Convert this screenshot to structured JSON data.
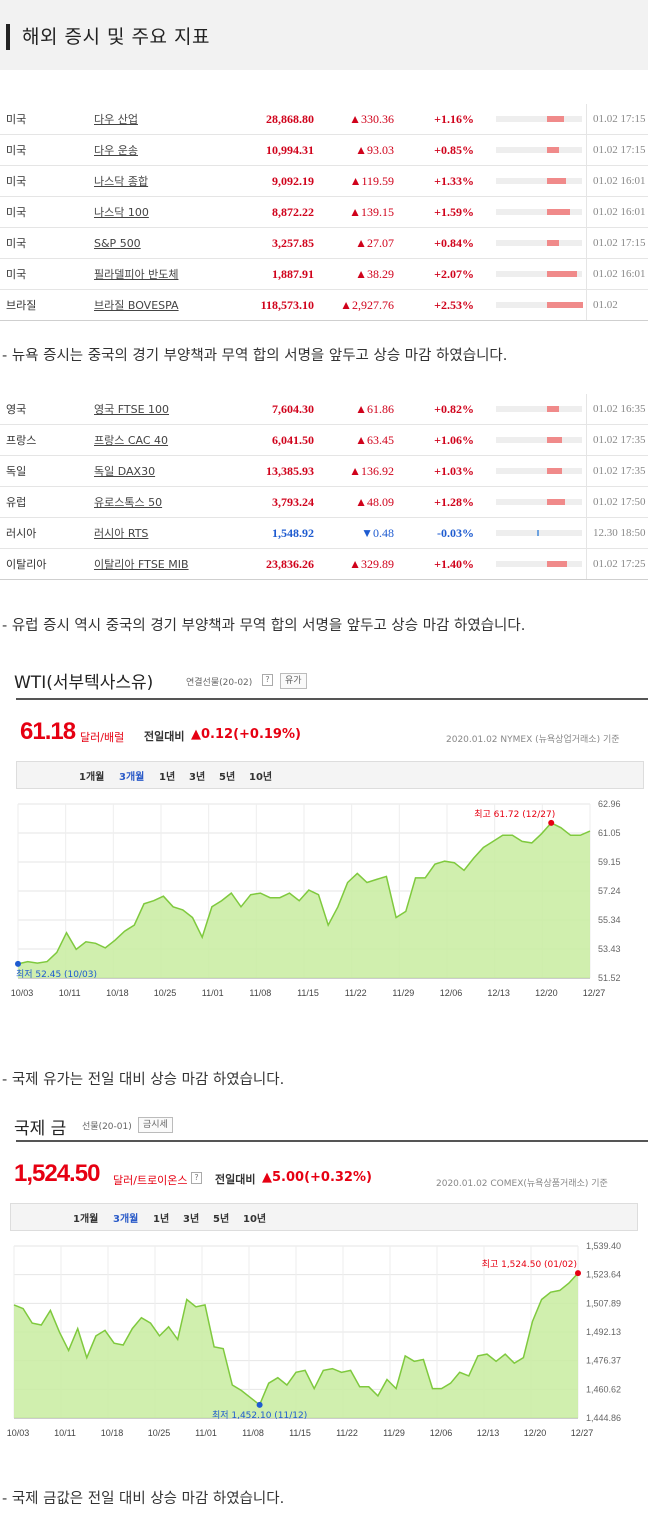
{
  "header": {
    "title": "해외 증시 및 주요 지표"
  },
  "us_table": [
    {
      "country": "미국",
      "name": "다우 산업",
      "price": "28,868.80",
      "change": "▲330.36",
      "pct": "+1.16%",
      "bar": 0.39,
      "dir": "up",
      "time": "01.02 17:15"
    },
    {
      "country": "미국",
      "name": "다우 운송",
      "price": "10,994.31",
      "change": "▲93.03",
      "pct": "+0.85%",
      "bar": 0.28,
      "dir": "up",
      "time": "01.02 17:15"
    },
    {
      "country": "미국",
      "name": "나스닥 종합",
      "price": "9,092.19",
      "change": "▲119.59",
      "pct": "+1.33%",
      "bar": 0.44,
      "dir": "up",
      "time": "01.02 16:01"
    },
    {
      "country": "미국",
      "name": "나스닥 100",
      "price": "8,872.22",
      "change": "▲139.15",
      "pct": "+1.59%",
      "bar": 0.53,
      "dir": "up",
      "time": "01.02 16:01"
    },
    {
      "country": "미국",
      "name": "S&P 500",
      "price": "3,257.85",
      "change": "▲27.07",
      "pct": "+0.84%",
      "bar": 0.28,
      "dir": "up",
      "time": "01.02 17:15"
    },
    {
      "country": "미국",
      "name": "필라델피아 반도체",
      "price": "1,887.91",
      "change": "▲38.29",
      "pct": "+2.07%",
      "bar": 0.69,
      "dir": "up",
      "time": "01.02 16:01"
    },
    {
      "country": "브라질",
      "name": "브라질 BOVESPA",
      "price": "118,573.10",
      "change": "▲2,927.76",
      "pct": "+2.53%",
      "bar": 0.84,
      "dir": "up",
      "time": "01.02"
    }
  ],
  "note_us": "- 뉴욕 증시는 중국의 경기 부양책과 무역 합의 서명을 앞두고 상승 마감 하였습니다.",
  "eu_table": [
    {
      "country": "영국",
      "name": "영국 FTSE 100",
      "price": "7,604.30",
      "change": "▲61.86",
      "pct": "+0.82%",
      "bar": 0.27,
      "dir": "up",
      "time": "01.02 16:35"
    },
    {
      "country": "프랑스",
      "name": "프랑스 CAC 40",
      "price": "6,041.50",
      "change": "▲63.45",
      "pct": "+1.06%",
      "bar": 0.35,
      "dir": "up",
      "time": "01.02 17:35"
    },
    {
      "country": "독일",
      "name": "독일 DAX30",
      "price": "13,385.93",
      "change": "▲136.92",
      "pct": "+1.03%",
      "bar": 0.34,
      "dir": "up",
      "time": "01.02 17:35"
    },
    {
      "country": "유럽",
      "name": "유로스톡스 50",
      "price": "3,793.24",
      "change": "▲48.09",
      "pct": "+1.28%",
      "bar": 0.43,
      "dir": "up",
      "time": "01.02 17:50"
    },
    {
      "country": "러시아",
      "name": "러시아 RTS",
      "price": "1,548.92",
      "change": "▼0.48",
      "pct": "-0.03%",
      "bar": 0.01,
      "dir": "down",
      "time": "12.30 18:50"
    },
    {
      "country": "이탈리아",
      "name": "이탈리아 FTSE MIB",
      "price": "23,836.26",
      "change": "▲329.89",
      "pct": "+1.40%",
      "bar": 0.47,
      "dir": "up",
      "time": "01.02 17:25"
    }
  ],
  "note_eu": "- 유럽 증시 역시 중국의 경기 부양책과 무역 합의 서명을 앞두고 상승 마감 하였습니다.",
  "wti": {
    "title": "WTI(서부텍사스유)",
    "sub": "연결선물(20-02)",
    "btn": "유가",
    "qmark": "?",
    "price": "61.18",
    "unit": "달러/배럴",
    "cmp_label": "전일대비",
    "cmp_val": "▲0.12(+0.19%)",
    "src": "2020.01.02 NYMEX (뉴욕상업거래소) 기준",
    "periods": [
      "1개월",
      "3개월",
      "1년",
      "3년",
      "5년",
      "10년"
    ],
    "active_period": "3개월",
    "high_label": "최고 61.72 (12/27)",
    "low_label": "최저 52.45 (10/03)",
    "line_color": "#7fc93e",
    "fill_color": "#c8eca0",
    "chart_data": {
      "type": "area",
      "x_ticks": [
        "10/03",
        "10/11",
        "10/18",
        "10/25",
        "11/01",
        "11/08",
        "11/15",
        "11/22",
        "11/29",
        "12/06",
        "12/13",
        "12/20",
        "12/27"
      ],
      "y_ticks": [
        "62.96",
        "61.05",
        "59.15",
        "57.24",
        "55.34",
        "53.43",
        "51.52"
      ],
      "ylim": [
        51.52,
        62.96
      ],
      "values": [
        52.45,
        52.6,
        52.5,
        52.6,
        53.2,
        54.5,
        53.4,
        53.9,
        53.8,
        53.5,
        54.0,
        54.6,
        55.0,
        56.4,
        56.6,
        56.9,
        56.2,
        56.0,
        55.5,
        54.2,
        56.2,
        56.6,
        57.1,
        56.2,
        57.0,
        57.1,
        56.8,
        56.8,
        57.1,
        56.6,
        57.3,
        57.0,
        55.0,
        56.2,
        57.8,
        58.4,
        57.8,
        58.0,
        58.2,
        55.5,
        55.9,
        58.1,
        58.1,
        59.0,
        59.2,
        59.1,
        58.6,
        59.4,
        60.1,
        60.5,
        60.9,
        60.9,
        60.5,
        60.4,
        61.0,
        61.72,
        61.4,
        60.9,
        60.9,
        61.18
      ]
    }
  },
  "note_wti": "- 국제 유가는 전일 대비 상승 마감 하였습니다.",
  "gold": {
    "title": "국제 금",
    "sub": "선물(20-01)",
    "btn": "금시세",
    "qmark": "?",
    "price": "1,524.50",
    "unit": "달러/트로이온스",
    "cmp_label": "전일대비",
    "cmp_val": "▲5.00(+0.32%)",
    "src": "2020.01.02 COMEX(뉴욕상품거래소) 기준",
    "periods": [
      "1개월",
      "3개월",
      "1년",
      "3년",
      "5년",
      "10년"
    ],
    "active_period": "3개월",
    "high_label": "최고 1,524.50 (01/02)",
    "low_label": "최저 1,452.10 (11/12)",
    "line_color": "#7fc93e",
    "fill_color": "#c8eca0",
    "chart_data": {
      "type": "area",
      "x_ticks": [
        "10/03",
        "10/11",
        "10/18",
        "10/25",
        "11/01",
        "11/08",
        "11/15",
        "11/22",
        "11/29",
        "12/06",
        "12/13",
        "12/20",
        "12/27"
      ],
      "y_ticks": [
        "1,539.40",
        "1,523.64",
        "1,507.89",
        "1,492.13",
        "1,476.37",
        "1,460.62",
        "1,444.86"
      ],
      "ylim": [
        1444.86,
        1539.4
      ],
      "values": [
        1507,
        1505,
        1497,
        1496,
        1504,
        1492,
        1482,
        1494,
        1478,
        1490,
        1493,
        1486,
        1485,
        1494,
        1500,
        1497,
        1490,
        1495,
        1488,
        1510,
        1506,
        1507,
        1484,
        1483,
        1463,
        1460,
        1456,
        1452.1,
        1464,
        1467,
        1463,
        1470,
        1471,
        1461,
        1471,
        1472,
        1470,
        1471,
        1462,
        1462,
        1457,
        1466,
        1461,
        1479,
        1476,
        1477,
        1461,
        1461,
        1464,
        1470,
        1468,
        1479,
        1480,
        1476,
        1480,
        1475,
        1478,
        1498,
        1510,
        1514,
        1515,
        1519,
        1524.5
      ]
    }
  },
  "note_gold": "- 국제 금값은 전일 대비 상승 마감 하였습니다."
}
